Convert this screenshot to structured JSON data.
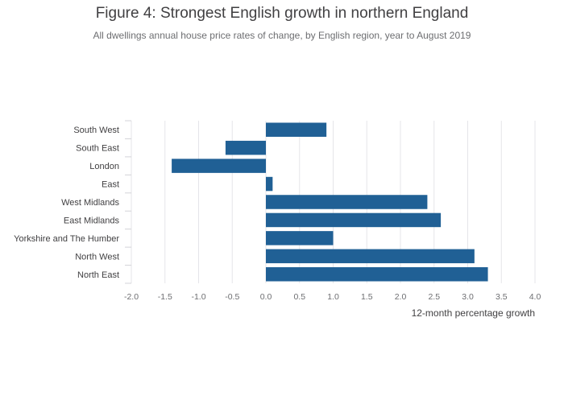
{
  "chart_data": {
    "type": "bar",
    "orientation": "horizontal",
    "title": "Figure 4: Strongest English growth in northern England",
    "subtitle": "All dwellings annual house price rates of change, by English region, year to August 2019",
    "xlabel": "12-month percentage growth",
    "ylabel": "",
    "categories": [
      "South West",
      "South East",
      "London",
      "East",
      "West Midlands",
      "East Midlands",
      "Yorkshire and The Humber",
      "North West",
      "North East"
    ],
    "values": [
      0.9,
      -0.6,
      -1.4,
      0.1,
      2.4,
      2.6,
      1.0,
      3.1,
      3.3
    ],
    "xlim": [
      -2.0,
      4.0
    ],
    "xticks": [
      "-2.0",
      "-1.5",
      "-1.0",
      "-0.5",
      "0.0",
      "0.5",
      "1.0",
      "1.5",
      "2.0",
      "2.5",
      "3.0",
      "3.5",
      "4.0"
    ],
    "grid": true,
    "legend": "none",
    "bar_color": "#206095",
    "grid_color": "#e5e5e9",
    "text_color": "#414042"
  }
}
